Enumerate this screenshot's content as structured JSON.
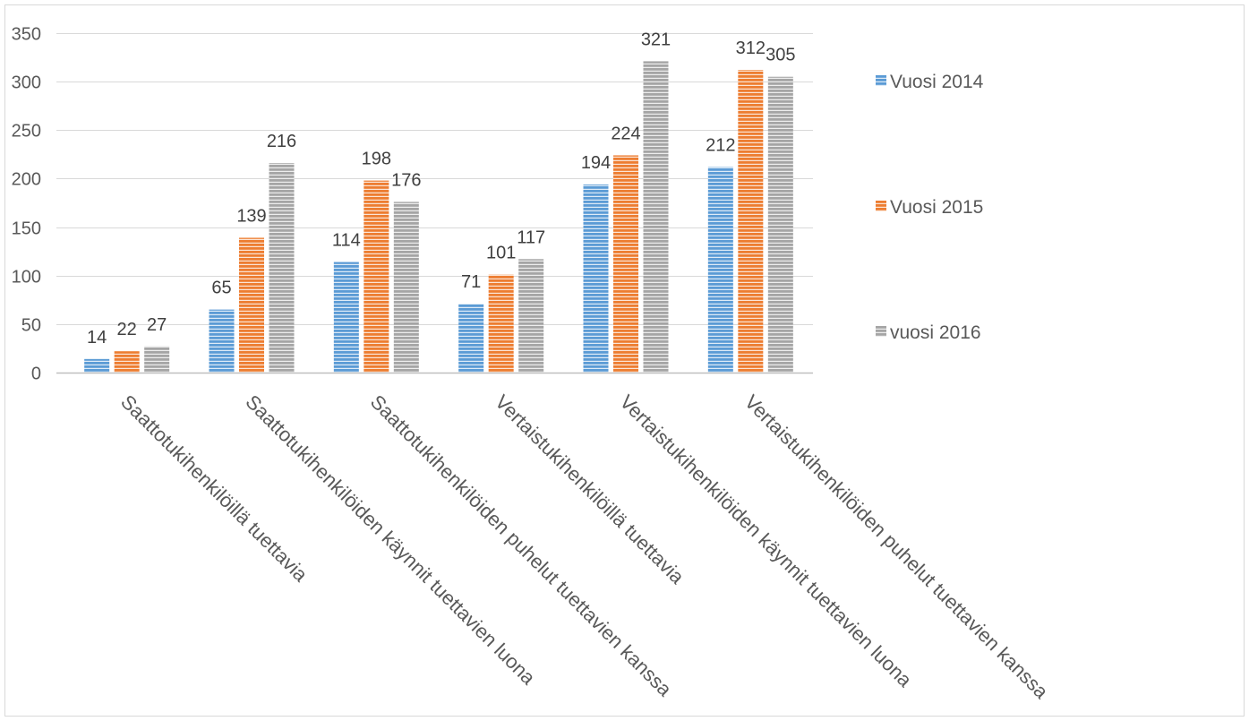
{
  "chart_data": {
    "type": "bar",
    "categories": [
      "Saattotukihenkilöillä tuettavia",
      "Saattotukihenkilöiden käynnit tuettavien luona",
      "Saattotukihenkilöiden puhelut tuettavien kanssa",
      "Vertaistukihenkilöillä tuettavia",
      "Vertaistukihenkilöiden käynnit tuettavien luona",
      "Vertaistukihenkilöiden puhelut tuettavien kanssa"
    ],
    "series": [
      {
        "name": "Vuosi 2014",
        "values": [
          14,
          65,
          114,
          71,
          194,
          212
        ],
        "color": "#5B9BD5"
      },
      {
        "name": "Vuosi 2015",
        "values": [
          22,
          139,
          198,
          101,
          224,
          312
        ],
        "color": "#ED7D31"
      },
      {
        "name": "vuosi 2016",
        "values": [
          27,
          216,
          176,
          117,
          321,
          305
        ],
        "color": "#A5A5A5"
      }
    ],
    "ylim": [
      0,
      350
    ],
    "yticks": [
      0,
      50,
      100,
      150,
      200,
      250,
      300,
      350
    ],
    "grid": true,
    "legend": "right",
    "data_labels": true
  }
}
